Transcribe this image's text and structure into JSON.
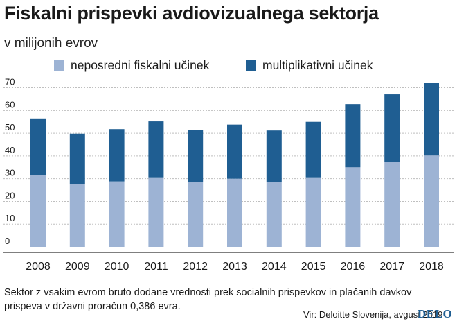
{
  "colors": {
    "direct": "#9db3d4",
    "multiplier": "#1f5e92",
    "grid": "#bfbfbf",
    "axis": "#333333",
    "logo": "#1f5e92"
  },
  "title": "Fiskalni prispevki avdiovizualnega sektorja",
  "subtitle": "v milijonih evrov",
  "note": "Sektor z vsakim evrom bruto dodane vrednosti prek socialnih prispevkov in plačanih davkov prispeva v državni proračun 0,386 evra.",
  "source": "Vir: Deloitte Slovenija, avgust 2019",
  "logo": "DELO",
  "chart_data": {
    "type": "bar",
    "stacked": true,
    "title": "Fiskalni prispevki avdiovizualnega sektorja",
    "subtitle": "v milijonih evrov",
    "categories": [
      "2008",
      "2009",
      "2010",
      "2011",
      "2012",
      "2013",
      "2014",
      "2015",
      "2016",
      "2017",
      "2018"
    ],
    "series": [
      {
        "name": "neposredni fiskalni učinek",
        "color": "#9db3d4",
        "values": [
          31.5,
          27.5,
          28.8,
          30.6,
          28.4,
          30.0,
          28.4,
          30.6,
          35.0,
          37.5,
          40.2
        ]
      },
      {
        "name": "multiplikativni učinek",
        "color": "#1f5e92",
        "values": [
          25.0,
          22.3,
          23.0,
          24.6,
          23.0,
          23.8,
          22.8,
          24.4,
          27.8,
          29.6,
          32.0
        ]
      }
    ],
    "yticks": [
      0,
      10,
      20,
      30,
      40,
      50,
      60,
      70
    ],
    "ylim": [
      0,
      75
    ],
    "xlabel": "",
    "ylabel": "",
    "grid": true,
    "legend": "top"
  }
}
